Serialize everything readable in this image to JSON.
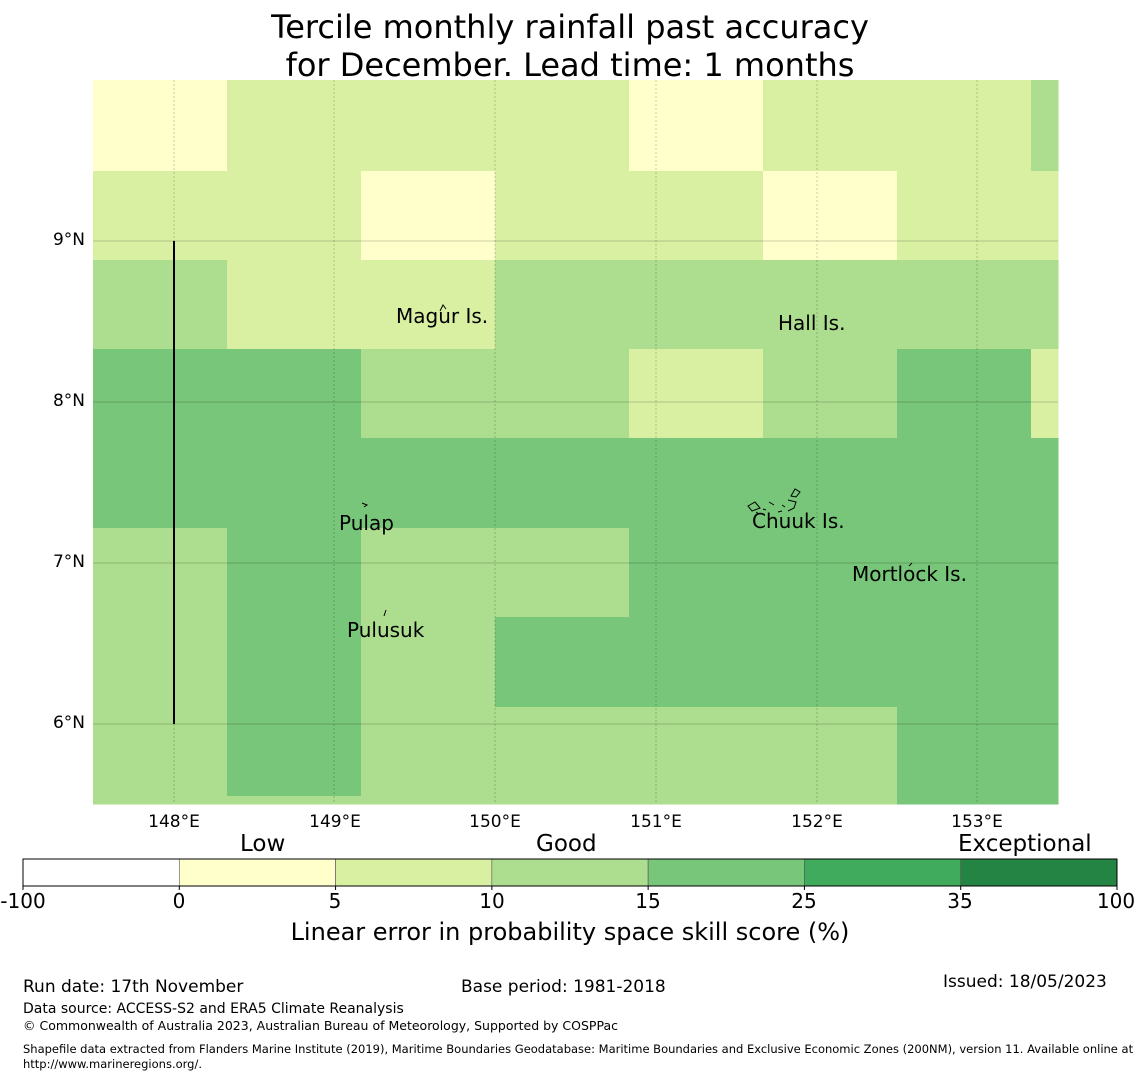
{
  "title": {
    "line1": "Tercile monthly rainfall past accuracy",
    "line2": "for December. Lead time: 1 months"
  },
  "map": {
    "grid_colors": [
      [
        "#ffffcc",
        "#d9f0a3",
        "#d9f0a3",
        "#d9f0a3",
        "#ffffcc",
        "#d9f0a3",
        "#d9f0a3",
        "#addd8e"
      ],
      [
        "#d9f0a3",
        "#d9f0a3",
        "#ffffcc",
        "#d9f0a3",
        "#d9f0a3",
        "#ffffcc",
        "#d9f0a3",
        "#d9f0a3"
      ],
      [
        "#addd8e",
        "#d9f0a3",
        "#d9f0a3",
        "#addd8e",
        "#addd8e",
        "#addd8e",
        "#addd8e",
        "#addd8e"
      ],
      [
        "#78c679",
        "#78c679",
        "#addd8e",
        "#addd8e",
        "#d9f0a3",
        "#addd8e",
        "#78c679",
        "#d9f0a3"
      ],
      [
        "#78c679",
        "#78c679",
        "#78c679",
        "#78c679",
        "#78c679",
        "#78c679",
        "#78c679",
        "#78c679"
      ],
      [
        "#addd8e",
        "#78c679",
        "#addd8e",
        "#addd8e",
        "#78c679",
        "#78c679",
        "#78c679",
        "#78c679"
      ],
      [
        "#addd8e",
        "#78c679",
        "#addd8e",
        "#78c679",
        "#78c679",
        "#78c679",
        "#78c679",
        "#78c679"
      ],
      [
        "#addd8e",
        "#78c679",
        "#addd8e",
        "#addd8e",
        "#addd8e",
        "#addd8e",
        "#78c679",
        "#78c679"
      ],
      [
        "#addd8e",
        "#addd8e",
        "#addd8e",
        "#addd8e",
        "#addd8e",
        "#addd8e",
        "#78c679",
        "#78c679"
      ]
    ],
    "lat_labels": [
      "9°N",
      "8°N",
      "7°N",
      "6°N"
    ],
    "lon_labels": [
      "148°E",
      "149°E",
      "150°E",
      "151°E",
      "152°E",
      "153°E"
    ],
    "places": {
      "magur": "Magur Is.",
      "hall": "Hall Is.",
      "pulap": "Pulap",
      "chuuk": "Chuuk Is.",
      "mortlock": "Mortlock Is.",
      "pulusuk": "Pulusuk"
    }
  },
  "colorbar": {
    "categories": {
      "low": "Low",
      "good": "Good",
      "exceptional": "Exceptional"
    },
    "ticks": [
      "-100",
      "0",
      "5",
      "10",
      "15",
      "25",
      "35",
      "100"
    ],
    "colors": [
      "#ffffff",
      "#ffffcc",
      "#d9f0a3",
      "#addd8e",
      "#78c679",
      "#41ab5d",
      "#238443"
    ],
    "label": "Linear error in probability space skill score (%)"
  },
  "footer": {
    "run_date": "Run date: 17th November",
    "base_period": "Base period: 1981-2018",
    "issued": "Issued: 18/05/2023",
    "data_source": "Data source: ACCESS-S2 and ERA5 Climate Reanalysis",
    "copyright": "© Commonwealth of Australia 2023, Australian Bureau of Meteorology, Supported by COSPPac",
    "shapefile": "Shapefile data extracted from Flanders Marine Institute (2019), Maritime Boundaries Geodatabase: Maritime Boundaries and Exclusive Economic Zones (200NM), version 11. Available online at http://www.marineregions.org/."
  }
}
